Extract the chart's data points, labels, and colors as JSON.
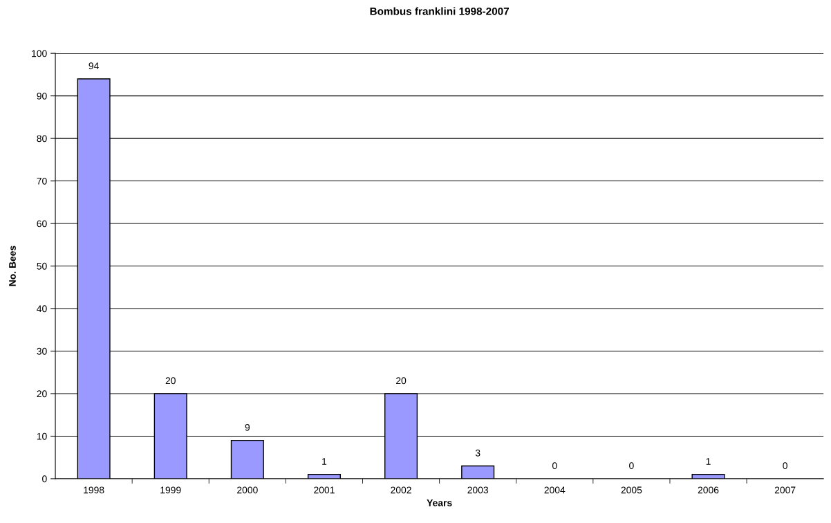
{
  "chart_data": {
    "type": "bar",
    "title": "Bombus franklini 1998-2007",
    "xlabel": "Years",
    "ylabel": "No. Bees",
    "categories": [
      "1998",
      "1999",
      "2000",
      "2001",
      "2002",
      "2003",
      "2004",
      "2005",
      "2006",
      "2007"
    ],
    "values": [
      94,
      20,
      9,
      1,
      20,
      3,
      0,
      0,
      1,
      0
    ],
    "color": "#9999ff",
    "ylim": [
      0,
      100
    ],
    "yticks": [
      0,
      10,
      20,
      30,
      40,
      50,
      60,
      70,
      80,
      90,
      100
    ],
    "grid": "y",
    "data_labels": true,
    "legend": false
  }
}
